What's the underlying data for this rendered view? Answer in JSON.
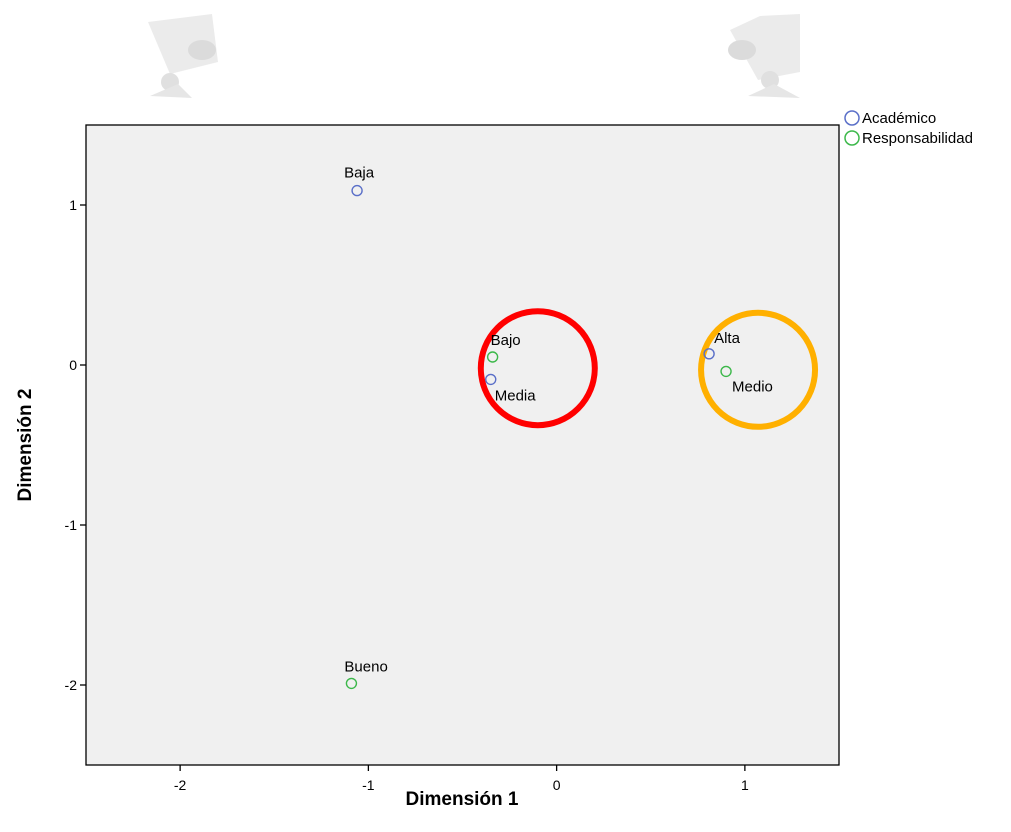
{
  "chart_data": {
    "type": "scatter",
    "xlabel": "Dimensión 1",
    "ylabel": "Dimensión 2",
    "xlim": [
      -2.5,
      1.5
    ],
    "ylim": [
      -2.5,
      1.5
    ],
    "x_ticks": [
      "-2",
      "-1",
      "0",
      "1"
    ],
    "y_ticks": [
      "1",
      "0",
      "-1",
      "-2"
    ],
    "grid": false,
    "legend_position": "top-right, outside plot",
    "series": [
      {
        "name": "Académico",
        "color": "#5a6fc8",
        "points": [
          {
            "label": "Baja",
            "x": -1.06,
            "y": 1.09
          },
          {
            "label": "Media",
            "x": -0.35,
            "y": -0.09
          },
          {
            "label": "Alta",
            "x": 0.81,
            "y": 0.07
          }
        ]
      },
      {
        "name": "Responsabilidad",
        "color": "#3cb84a",
        "points": [
          {
            "label": "Bajo",
            "x": -0.34,
            "y": 0.05
          },
          {
            "label": "Medio",
            "x": 0.9,
            "y": -0.04
          },
          {
            "label": "Bueno",
            "x": -1.09,
            "y": -1.99
          }
        ]
      }
    ],
    "annotations": [
      {
        "shape": "circle",
        "color": "#ff0000",
        "center_x": -0.1,
        "center_y": -0.02
      },
      {
        "shape": "circle",
        "color": "#ffb000",
        "center_x": 1.07,
        "center_y": -0.03
      }
    ]
  }
}
